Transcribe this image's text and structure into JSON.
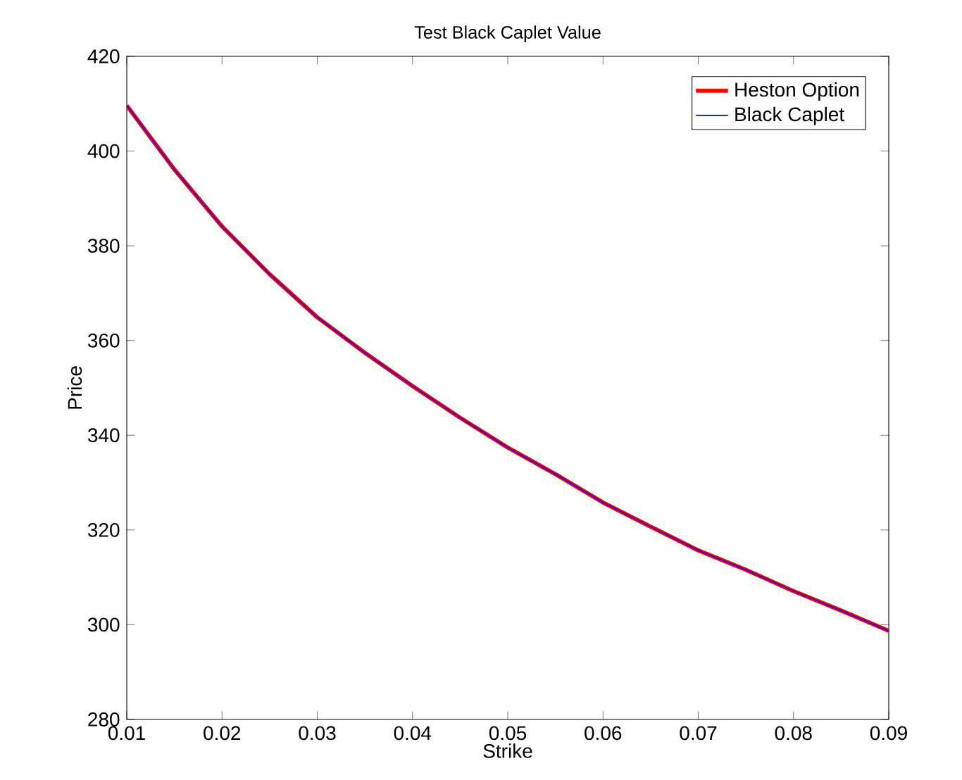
{
  "chart_data": {
    "type": "line",
    "title": "Test Black Caplet Value",
    "xlabel": "Strike",
    "ylabel": "Price",
    "x": [
      0.01,
      0.015,
      0.02,
      0.025,
      0.03,
      0.035,
      0.04,
      0.045,
      0.05,
      0.055,
      0.06,
      0.065,
      0.07,
      0.075,
      0.08,
      0.085,
      0.09
    ],
    "series": [
      {
        "name": "Heston Option",
        "color": "#ff0000",
        "values": [
          409.6,
          396.1,
          384.1,
          374.0,
          364.9,
          357.4,
          350.4,
          343.7,
          337.4,
          331.8,
          325.8,
          320.7,
          315.7,
          311.6,
          307.1,
          303.0,
          298.7
        ]
      },
      {
        "name": "Black Caplet",
        "color": "#0000ff",
        "values": [
          409.6,
          396.1,
          384.1,
          374.0,
          364.9,
          357.4,
          350.4,
          343.7,
          337.4,
          331.8,
          325.8,
          320.7,
          315.7,
          311.6,
          307.1,
          303.0,
          298.7
        ]
      }
    ],
    "xlim": [
      0.01,
      0.09
    ],
    "ylim": [
      280,
      420
    ],
    "xticks": [
      0.01,
      0.02,
      0.03,
      0.04,
      0.05,
      0.06,
      0.07,
      0.08,
      0.09
    ],
    "yticks": [
      280,
      300,
      320,
      340,
      360,
      380,
      400,
      420
    ],
    "legend": "top right",
    "grid": false
  }
}
